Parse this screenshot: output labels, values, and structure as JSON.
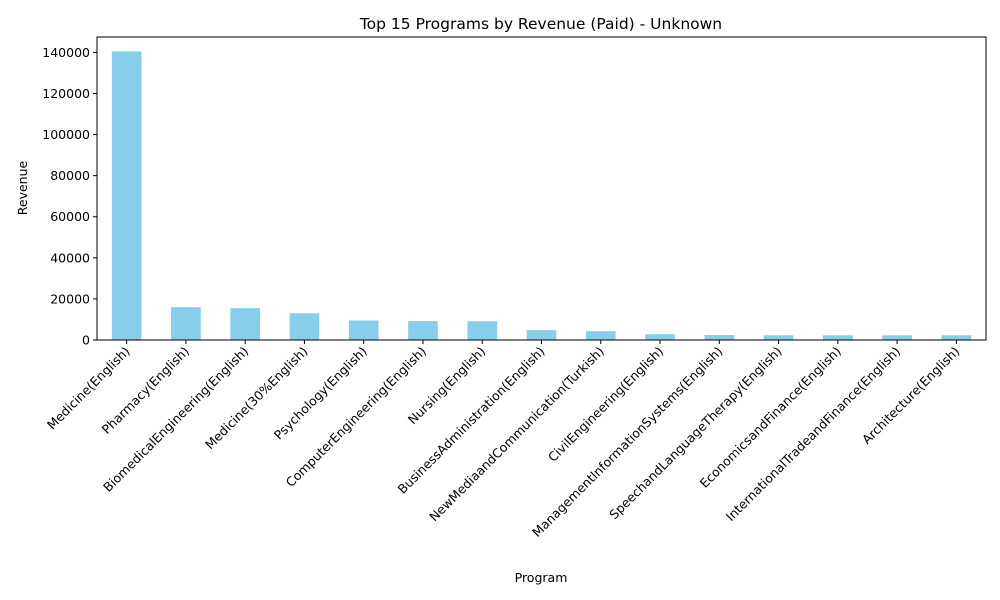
{
  "chart_data": {
    "type": "bar",
    "title": "Top 15 Programs by Revenue (Paid) - Unknown",
    "xlabel": "Program",
    "ylabel": "Revenue",
    "ylim": [
      0,
      147500
    ],
    "yticks": [
      0,
      20000,
      40000,
      60000,
      80000,
      100000,
      120000,
      140000
    ],
    "grid": false,
    "bar_color": "#87ceeb",
    "categories": [
      "Medicine(English)",
      "Pharmacy(English)",
      "BiomedicalEngineering(English)",
      "Medicine(30%English)",
      "Psychology(English)",
      "ComputerEngineering(English)",
      "Nursing(English)",
      "BusinessAdministration(English)",
      "NewMediaandCommunication(Turkish)",
      "CivilEngineering(English)",
      "ManagementInformationSystems(English)",
      "SpeechandLanguageTherapy(English)",
      "EconomicsandFinance(English)",
      "InternationalTradeandFinance(English)",
      "Architecture(English)"
    ],
    "values": [
      140500,
      16000,
      15500,
      13000,
      9500,
      9200,
      9100,
      4800,
      4300,
      2800,
      2400,
      2300,
      2300,
      2300,
      2300
    ]
  }
}
